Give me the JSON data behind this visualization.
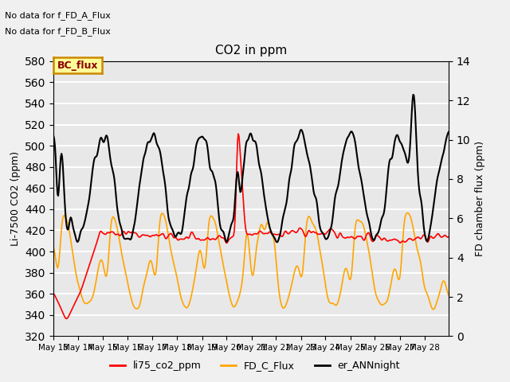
{
  "title": "CO2 in ppm",
  "ylabel_left": "Li-7500 CO2 (ppm)",
  "ylabel_right": "FD chamber flux (ppm)",
  "ylim_left": [
    320,
    580
  ],
  "ylim_right": [
    0,
    14
  ],
  "yticks_left": [
    320,
    340,
    360,
    380,
    400,
    420,
    440,
    460,
    480,
    500,
    520,
    540,
    560,
    580
  ],
  "yticks_right": [
    0,
    2,
    4,
    6,
    8,
    10,
    12,
    14
  ],
  "annotations": [
    "No data for f_FD_A_Flux",
    "No data for f_FD_B_Flux"
  ],
  "legend_box_label": "BC_flux",
  "legend_box_color": "#ffff99",
  "legend_box_border": "#cc8800",
  "line_colors": {
    "li75": "#ff0000",
    "fd_c": "#ffa500",
    "er_ann": "#000000"
  },
  "line_widths": {
    "li75": 1.2,
    "fd_c": 1.2,
    "er_ann": 1.5
  },
  "legend_labels": [
    "li75_co2_ppm",
    "FD_C_Flux",
    "er_ANNnight"
  ],
  "bg_color": "#e8e8e8",
  "grid_color": "#ffffff",
  "n_points": 600,
  "xticklabels": [
    "May 13",
    "May 14",
    "May 15",
    "May 16",
    "May 17",
    "May 18",
    "May 19",
    "May 20",
    "May 21",
    "May 22",
    "May 23",
    "May 24",
    "May 25",
    "May 26",
    "May 27",
    "May 28"
  ],
  "xtick_positions": [
    0,
    37,
    75,
    112,
    150,
    187,
    225,
    262,
    300,
    337,
    375,
    412,
    450,
    487,
    525,
    562
  ]
}
